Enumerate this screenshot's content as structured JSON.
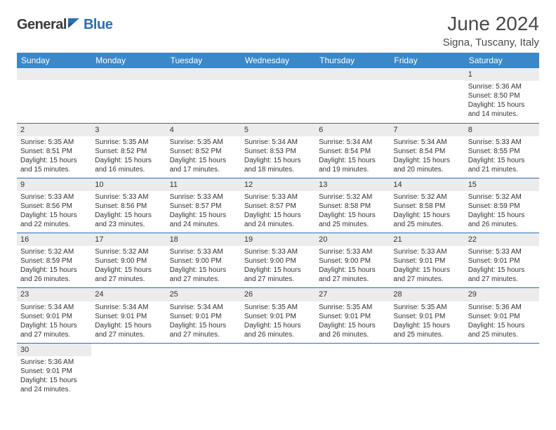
{
  "logo": {
    "part1": "General",
    "part2": "Blue"
  },
  "title": "June 2024",
  "location": "Signa, Tuscany, Italy",
  "colors": {
    "header_bg": "#3b88c8",
    "header_text": "#ffffff",
    "accent": "#2b6fb3",
    "daynum_bg": "#ececec",
    "text": "#333333",
    "logo_gray": "#3a3a3a",
    "logo_blue": "#2b6fb3"
  },
  "weekdays": [
    "Sunday",
    "Monday",
    "Tuesday",
    "Wednesday",
    "Thursday",
    "Friday",
    "Saturday"
  ],
  "weeks": [
    [
      null,
      null,
      null,
      null,
      null,
      null,
      {
        "n": "1",
        "sr": "Sunrise: 5:36 AM",
        "ss": "Sunset: 8:50 PM",
        "d1": "Daylight: 15 hours",
        "d2": "and 14 minutes."
      }
    ],
    [
      {
        "n": "2",
        "sr": "Sunrise: 5:35 AM",
        "ss": "Sunset: 8:51 PM",
        "d1": "Daylight: 15 hours",
        "d2": "and 15 minutes."
      },
      {
        "n": "3",
        "sr": "Sunrise: 5:35 AM",
        "ss": "Sunset: 8:52 PM",
        "d1": "Daylight: 15 hours",
        "d2": "and 16 minutes."
      },
      {
        "n": "4",
        "sr": "Sunrise: 5:35 AM",
        "ss": "Sunset: 8:52 PM",
        "d1": "Daylight: 15 hours",
        "d2": "and 17 minutes."
      },
      {
        "n": "5",
        "sr": "Sunrise: 5:34 AM",
        "ss": "Sunset: 8:53 PM",
        "d1": "Daylight: 15 hours",
        "d2": "and 18 minutes."
      },
      {
        "n": "6",
        "sr": "Sunrise: 5:34 AM",
        "ss": "Sunset: 8:54 PM",
        "d1": "Daylight: 15 hours",
        "d2": "and 19 minutes."
      },
      {
        "n": "7",
        "sr": "Sunrise: 5:34 AM",
        "ss": "Sunset: 8:54 PM",
        "d1": "Daylight: 15 hours",
        "d2": "and 20 minutes."
      },
      {
        "n": "8",
        "sr": "Sunrise: 5:33 AM",
        "ss": "Sunset: 8:55 PM",
        "d1": "Daylight: 15 hours",
        "d2": "and 21 minutes."
      }
    ],
    [
      {
        "n": "9",
        "sr": "Sunrise: 5:33 AM",
        "ss": "Sunset: 8:56 PM",
        "d1": "Daylight: 15 hours",
        "d2": "and 22 minutes."
      },
      {
        "n": "10",
        "sr": "Sunrise: 5:33 AM",
        "ss": "Sunset: 8:56 PM",
        "d1": "Daylight: 15 hours",
        "d2": "and 23 minutes."
      },
      {
        "n": "11",
        "sr": "Sunrise: 5:33 AM",
        "ss": "Sunset: 8:57 PM",
        "d1": "Daylight: 15 hours",
        "d2": "and 24 minutes."
      },
      {
        "n": "12",
        "sr": "Sunrise: 5:33 AM",
        "ss": "Sunset: 8:57 PM",
        "d1": "Daylight: 15 hours",
        "d2": "and 24 minutes."
      },
      {
        "n": "13",
        "sr": "Sunrise: 5:32 AM",
        "ss": "Sunset: 8:58 PM",
        "d1": "Daylight: 15 hours",
        "d2": "and 25 minutes."
      },
      {
        "n": "14",
        "sr": "Sunrise: 5:32 AM",
        "ss": "Sunset: 8:58 PM",
        "d1": "Daylight: 15 hours",
        "d2": "and 25 minutes."
      },
      {
        "n": "15",
        "sr": "Sunrise: 5:32 AM",
        "ss": "Sunset: 8:59 PM",
        "d1": "Daylight: 15 hours",
        "d2": "and 26 minutes."
      }
    ],
    [
      {
        "n": "16",
        "sr": "Sunrise: 5:32 AM",
        "ss": "Sunset: 8:59 PM",
        "d1": "Daylight: 15 hours",
        "d2": "and 26 minutes."
      },
      {
        "n": "17",
        "sr": "Sunrise: 5:32 AM",
        "ss": "Sunset: 9:00 PM",
        "d1": "Daylight: 15 hours",
        "d2": "and 27 minutes."
      },
      {
        "n": "18",
        "sr": "Sunrise: 5:33 AM",
        "ss": "Sunset: 9:00 PM",
        "d1": "Daylight: 15 hours",
        "d2": "and 27 minutes."
      },
      {
        "n": "19",
        "sr": "Sunrise: 5:33 AM",
        "ss": "Sunset: 9:00 PM",
        "d1": "Daylight: 15 hours",
        "d2": "and 27 minutes."
      },
      {
        "n": "20",
        "sr": "Sunrise: 5:33 AM",
        "ss": "Sunset: 9:00 PM",
        "d1": "Daylight: 15 hours",
        "d2": "and 27 minutes."
      },
      {
        "n": "21",
        "sr": "Sunrise: 5:33 AM",
        "ss": "Sunset: 9:01 PM",
        "d1": "Daylight: 15 hours",
        "d2": "and 27 minutes."
      },
      {
        "n": "22",
        "sr": "Sunrise: 5:33 AM",
        "ss": "Sunset: 9:01 PM",
        "d1": "Daylight: 15 hours",
        "d2": "and 27 minutes."
      }
    ],
    [
      {
        "n": "23",
        "sr": "Sunrise: 5:34 AM",
        "ss": "Sunset: 9:01 PM",
        "d1": "Daylight: 15 hours",
        "d2": "and 27 minutes."
      },
      {
        "n": "24",
        "sr": "Sunrise: 5:34 AM",
        "ss": "Sunset: 9:01 PM",
        "d1": "Daylight: 15 hours",
        "d2": "and 27 minutes."
      },
      {
        "n": "25",
        "sr": "Sunrise: 5:34 AM",
        "ss": "Sunset: 9:01 PM",
        "d1": "Daylight: 15 hours",
        "d2": "and 27 minutes."
      },
      {
        "n": "26",
        "sr": "Sunrise: 5:35 AM",
        "ss": "Sunset: 9:01 PM",
        "d1": "Daylight: 15 hours",
        "d2": "and 26 minutes."
      },
      {
        "n": "27",
        "sr": "Sunrise: 5:35 AM",
        "ss": "Sunset: 9:01 PM",
        "d1": "Daylight: 15 hours",
        "d2": "and 26 minutes."
      },
      {
        "n": "28",
        "sr": "Sunrise: 5:35 AM",
        "ss": "Sunset: 9:01 PM",
        "d1": "Daylight: 15 hours",
        "d2": "and 25 minutes."
      },
      {
        "n": "29",
        "sr": "Sunrise: 5:36 AM",
        "ss": "Sunset: 9:01 PM",
        "d1": "Daylight: 15 hours",
        "d2": "and 25 minutes."
      }
    ],
    [
      {
        "n": "30",
        "sr": "Sunrise: 5:36 AM",
        "ss": "Sunset: 9:01 PM",
        "d1": "Daylight: 15 hours",
        "d2": "and 24 minutes."
      },
      null,
      null,
      null,
      null,
      null,
      null
    ]
  ]
}
